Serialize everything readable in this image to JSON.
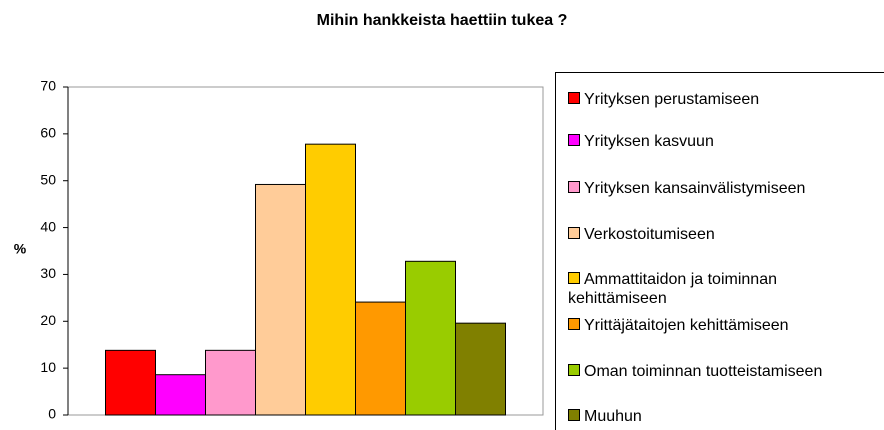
{
  "chart_data": {
    "type": "bar",
    "title": "Mihin hankkeista haettiin tukea ?",
    "y_label": "%",
    "categories": [
      null
    ],
    "series": [
      {
        "name": "Yrityksen perustamiseen",
        "color": "#ff0000",
        "values": [
          13.8
        ]
      },
      {
        "name": "Yrityksen kasvuun",
        "color": "#ff00ff",
        "values": [
          8.6
        ]
      },
      {
        "name": "Yrityksen kansainvälistymiseen",
        "color": "#ff99cc",
        "values": [
          13.8
        ]
      },
      {
        "name": "Verkostoitumiseen",
        "color": "#ffcc99",
        "values": [
          49.2
        ]
      },
      {
        "name": "Ammattitaidon ja toiminnan kehittämiseen",
        "color": "#ffcc00",
        "values": [
          57.8
        ]
      },
      {
        "name": "Yrittäjätaitojen kehittämiseen",
        "color": "#ff9900",
        "values": [
          24.1
        ]
      },
      {
        "name": "Oman toiminnan tuotteistamiseen",
        "color": "#99cc00",
        "values": [
          32.8
        ]
      },
      {
        "name": "Muuhun",
        "color": "#808000",
        "values": [
          19.6
        ]
      }
    ],
    "ylim": [
      0,
      70
    ],
    "yticks": [
      0,
      10,
      20,
      30,
      40,
      50,
      60,
      70
    ],
    "grid": false,
    "legend": "right"
  }
}
